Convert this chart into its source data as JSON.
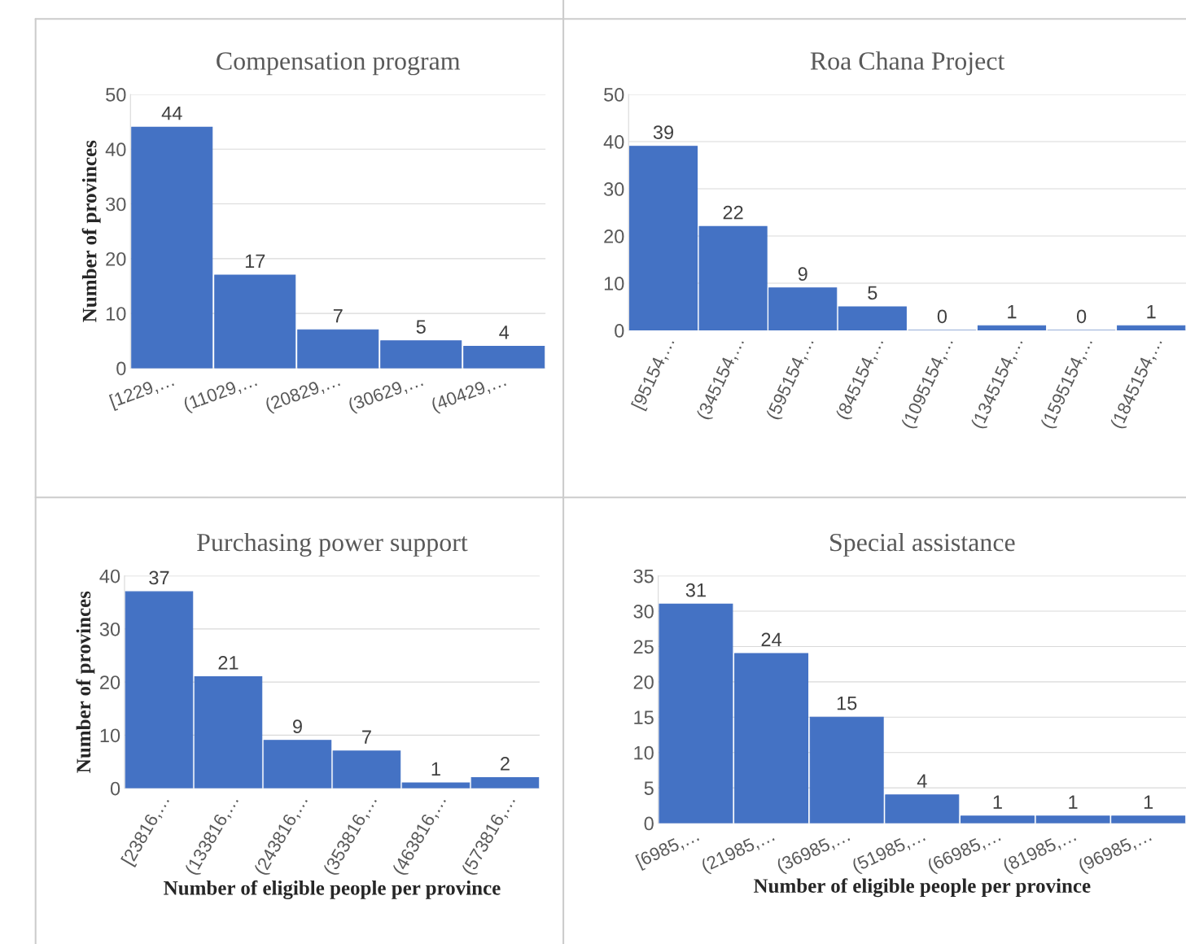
{
  "chart_data": [
    {
      "type": "bar",
      "title": "Compensation program",
      "ylabel": "Number of provinces",
      "categories": [
        "[1229,…",
        "(11029,…",
        "(20829,…",
        "(30629,…",
        "(40429,…"
      ],
      "values": [
        44,
        17,
        7,
        5,
        4
      ],
      "color": "#4472c4",
      "ylim": [
        0,
        50
      ],
      "yticks": [
        0,
        10,
        20,
        30,
        40,
        50
      ],
      "grid": "y",
      "data_labels": true
    },
    {
      "type": "bar",
      "title": "Roa Chana Project",
      "categories": [
        "[95154,…",
        "(345154,…",
        "(595154,…",
        "(845154,…",
        "(1095154,…",
        "(1345154,…",
        "(1595154,…",
        "(1845154,…"
      ],
      "values": [
        39,
        22,
        9,
        5,
        0,
        1,
        0,
        1
      ],
      "color": "#4472c4",
      "ylim": [
        0,
        50
      ],
      "yticks": [
        0,
        10,
        20,
        30,
        40,
        50
      ],
      "grid": "y",
      "data_labels": true
    },
    {
      "type": "bar",
      "title": "Purchasing power support",
      "ylabel": "Number of provinces",
      "xlabel": "Number of eligible people per province",
      "categories": [
        "[23816,…",
        "(133816,…",
        "(243816,…",
        "(353816,…",
        "(463816,…",
        "(573816,…"
      ],
      "values": [
        37,
        21,
        9,
        7,
        1,
        2
      ],
      "color": "#4472c4",
      "ylim": [
        0,
        40
      ],
      "yticks": [
        0,
        10,
        20,
        30,
        40
      ],
      "grid": "y",
      "data_labels": true
    },
    {
      "type": "bar",
      "title": "Special assistance",
      "xlabel": "Number of eligible people per province",
      "categories": [
        "[6985,…",
        "(21985,…",
        "(36985,…",
        "(51985,…",
        "(66985,…",
        "(81985,…",
        "(96985,…"
      ],
      "values": [
        31,
        24,
        15,
        4,
        1,
        1,
        1
      ],
      "color": "#4472c4",
      "ylim": [
        0,
        35
      ],
      "yticks": [
        0,
        5,
        10,
        15,
        20,
        25,
        30,
        35
      ],
      "grid": "y",
      "data_labels": true
    }
  ]
}
